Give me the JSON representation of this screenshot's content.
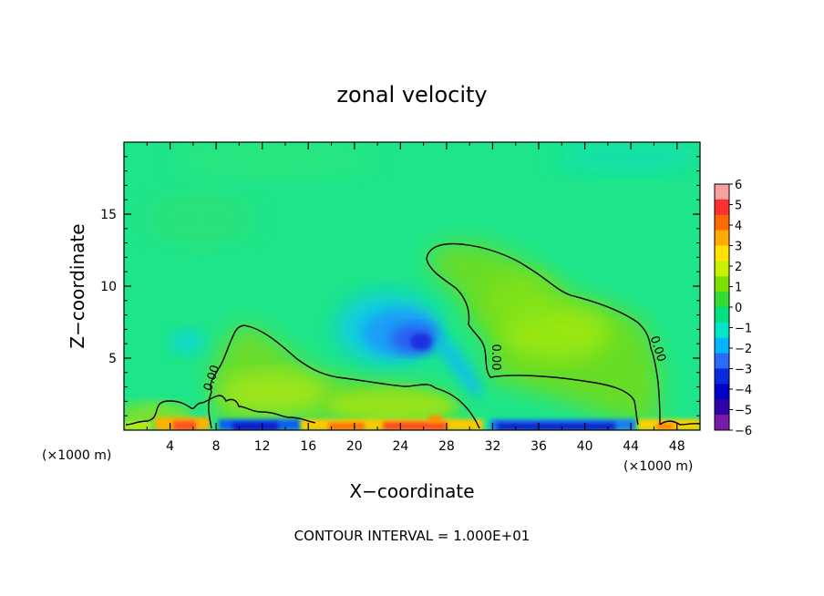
{
  "chart_data": {
    "type": "heatmap",
    "title": "zonal velocity",
    "xlabel": "X−coordinate",
    "ylabel": "Z−coordinate",
    "x_unit": "(×1000 m)",
    "x_unit_right": "(×1000 m)",
    "xlim": [
      0,
      50
    ],
    "ylim": [
      0,
      20
    ],
    "x_ticks": [
      4,
      8,
      12,
      16,
      20,
      24,
      28,
      32,
      36,
      40,
      44,
      48
    ],
    "y_ticks": [
      5,
      10,
      15
    ],
    "colorbar": {
      "ticks": [
        6,
        5,
        4,
        3,
        2,
        1,
        0,
        -1,
        -2,
        -3,
        -4,
        -5,
        -6
      ],
      "tick_labels": [
        "6",
        "5",
        "4",
        "3",
        "2",
        "1",
        "0",
        "−1",
        "−2",
        "−3",
        "−4",
        "−5",
        "−6"
      ],
      "colors": [
        "#f7a0a0",
        "#ff3030",
        "#ff6a00",
        "#ffaa00",
        "#ffe000",
        "#c8f000",
        "#7ee000",
        "#32dc32",
        "#00e080",
        "#00e6c8",
        "#00b4ff",
        "#2a6cf8",
        "#0a28e0",
        "#0000c8",
        "#3000a8",
        "#7a1aa8"
      ]
    },
    "contour_label": "0.00",
    "contour_interval_text": "CONTOUR INTERVAL = 1.000E+01",
    "grid": false
  }
}
